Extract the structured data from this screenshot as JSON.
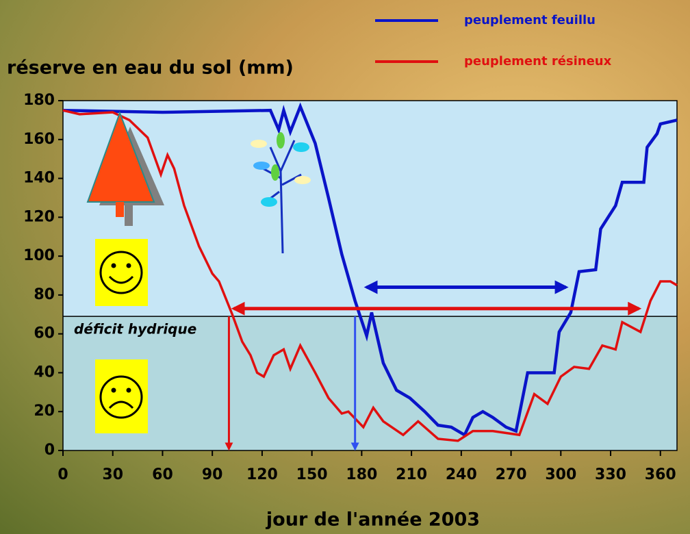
{
  "chart_data": {
    "type": "line",
    "y_label": "réserve en eau du sol (mm)",
    "x_label": "jour de l'année 2003",
    "xlim": [
      0,
      370
    ],
    "ylim": [
      0,
      180
    ],
    "xticks": [
      0,
      30,
      60,
      90,
      120,
      150,
      180,
      210,
      240,
      270,
      300,
      330,
      360
    ],
    "yticks": [
      0,
      20,
      40,
      60,
      80,
      100,
      120,
      140,
      160,
      180
    ],
    "threshold": 69,
    "threshold_label": "déficit hydrique",
    "series": [
      {
        "name": "peuplement feuillu",
        "color": "#0a14c8",
        "x": [
          0,
          60,
          125,
          130,
          133,
          137,
          143,
          152,
          160,
          168,
          176,
          183,
          186,
          193,
          201,
          209,
          218,
          226,
          234,
          242,
          247,
          253,
          259,
          267,
          273,
          280,
          296,
          299,
          306,
          311,
          321,
          324,
          333,
          337,
          350,
          352,
          358,
          360,
          370
        ],
        "values": [
          175,
          174,
          175,
          165,
          175,
          164,
          177,
          158,
          130,
          101,
          77,
          59,
          71,
          45,
          31,
          27,
          20,
          13,
          12,
          8,
          17,
          20,
          17,
          12,
          10,
          40,
          40,
          61,
          71,
          92,
          93,
          114,
          126,
          138,
          138,
          156,
          163,
          168,
          170
        ]
      },
      {
        "name": "peuplement résineux",
        "color": "#e01010",
        "x": [
          0,
          10,
          30,
          40,
          51,
          59,
          63,
          67,
          73,
          82,
          90,
          94,
          102,
          108,
          113,
          117,
          121,
          127,
          133,
          137,
          143,
          152,
          160,
          168,
          172,
          181,
          187,
          193,
          205,
          214,
          226,
          238,
          247,
          259,
          275,
          284,
          292,
          300,
          308,
          317,
          325,
          333,
          337,
          348,
          354,
          360,
          366,
          370
        ],
        "values": [
          175,
          173,
          174,
          170,
          161,
          142,
          152,
          145,
          126,
          105,
          91,
          87,
          70,
          56,
          49,
          40,
          38,
          49,
          52,
          42,
          54,
          40,
          27,
          19,
          20,
          12,
          22,
          15,
          8,
          15,
          6,
          5,
          10,
          10,
          8,
          29,
          24,
          38,
          43,
          42,
          54,
          52,
          66,
          61,
          77,
          87,
          87,
          85
        ]
      }
    ],
    "spans": [
      {
        "color": "#e01010",
        "start": 103,
        "end": 347,
        "y": 73
      },
      {
        "color": "#0a14c8",
        "start": 183,
        "end": 303,
        "y": 84
      }
    ],
    "drops": [
      {
        "color": "#e01010",
        "x": 100
      },
      {
        "color": "#3050f0",
        "x": 176
      }
    ]
  }
}
